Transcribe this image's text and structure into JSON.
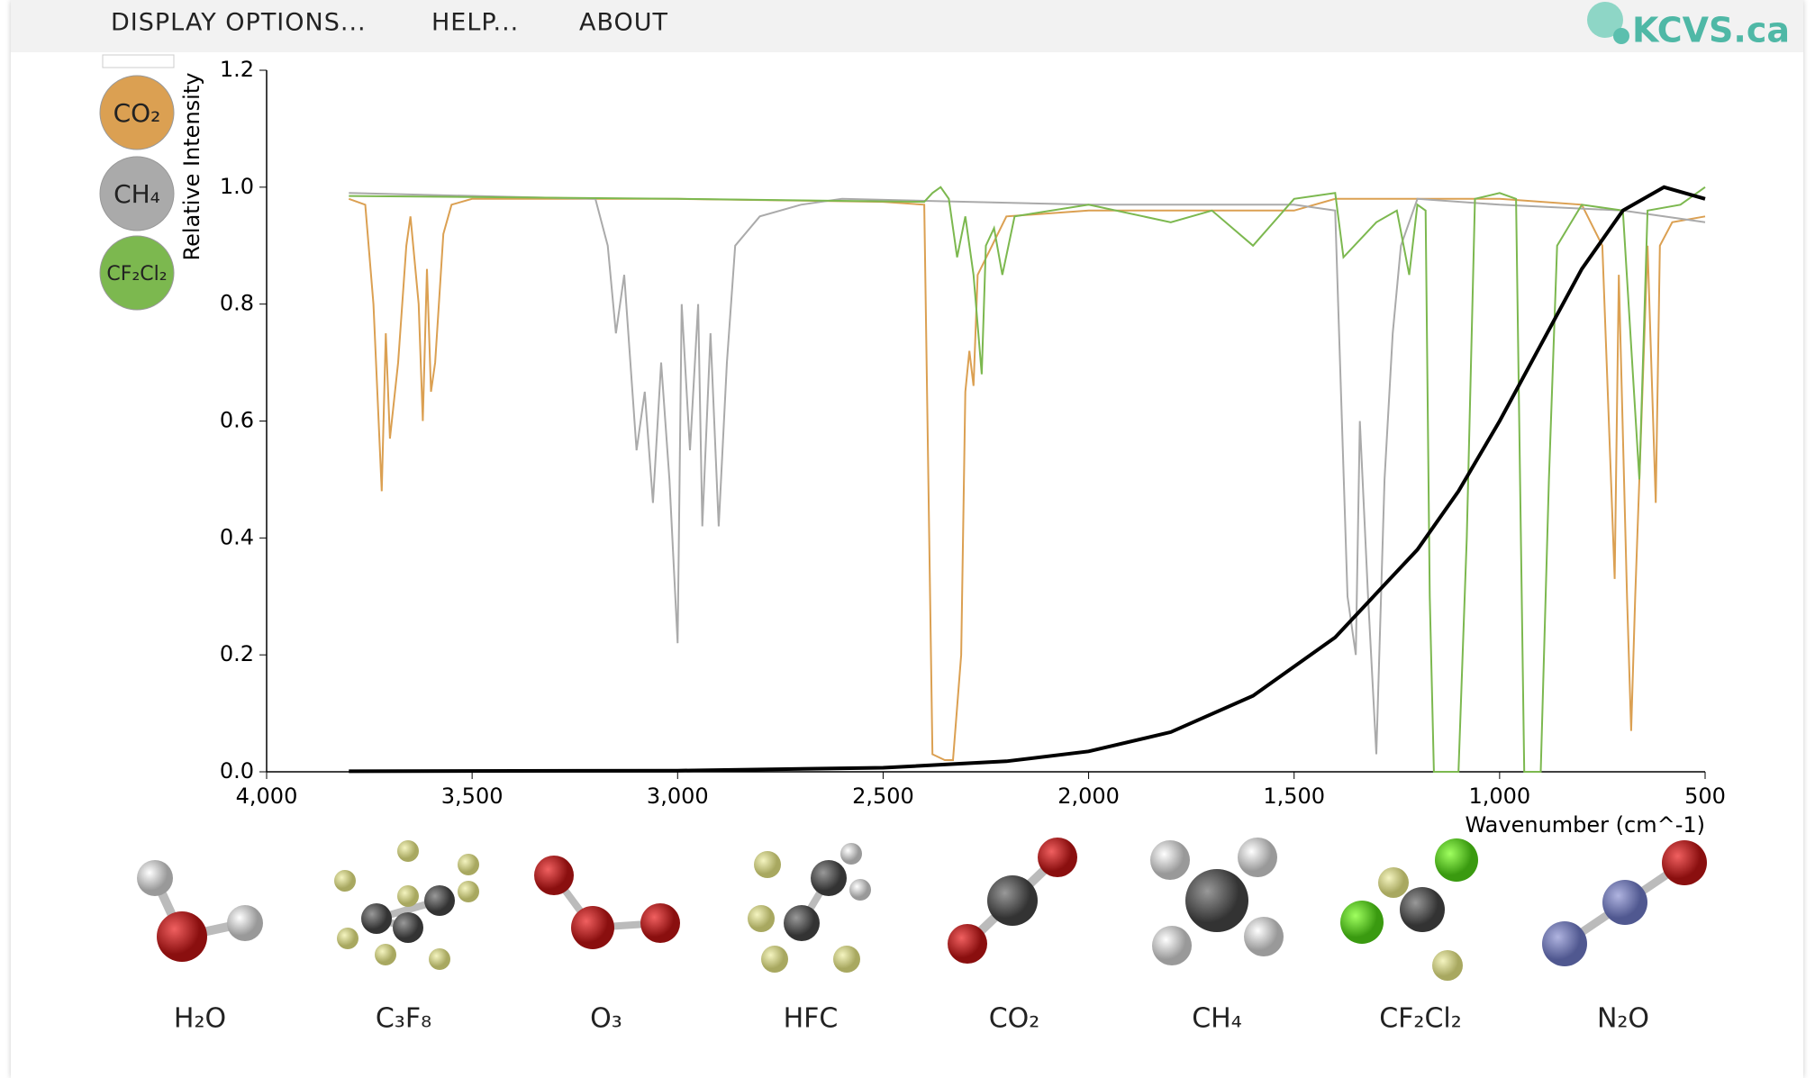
{
  "menu": [
    "DISPLAY OPTIONS...",
    "HELP...",
    "ABOUT"
  ],
  "logo": "KCVS.ca",
  "chart_data": {
    "type": "line",
    "xlabel": "Wavenumber (cm^-1)",
    "ylabel": "Relative Intensity",
    "xlim": [
      4000,
      500
    ],
    "ylim": [
      0,
      1.2
    ],
    "xticks": [
      {
        "value": 4000,
        "label": "4,000"
      },
      {
        "value": 3500,
        "label": "3,500"
      },
      {
        "value": 3000,
        "label": "3,000"
      },
      {
        "value": 2500,
        "label": "2,500"
      },
      {
        "value": 2000,
        "label": "2,000"
      },
      {
        "value": 1500,
        "label": "1,500"
      },
      {
        "value": 1000,
        "label": "1,000"
      },
      500
    ],
    "yticks": [
      {
        "value": 0,
        "label": "0.0"
      },
      0.2,
      0.4,
      0.6,
      0.8,
      {
        "value": 1,
        "label": "1.0"
      },
      1.2
    ],
    "series": [
      {
        "name": "CO₂",
        "color": "#dba052",
        "x": [
          3800,
          3760,
          3740,
          3720,
          3710,
          3700,
          3680,
          3660,
          3650,
          3630,
          3620,
          3610,
          3600,
          3590,
          3570,
          3550,
          3500,
          3000,
          2500,
          2400,
          2380,
          2350,
          2330,
          2310,
          2300,
          2290,
          2280,
          2270,
          2200,
          2000,
          1500,
          1400,
          1000,
          800,
          750,
          720,
          710,
          690,
          680,
          670,
          660,
          640,
          620,
          610,
          580,
          500
        ],
        "values": [
          0.98,
          0.97,
          0.8,
          0.48,
          0.75,
          0.57,
          0.7,
          0.9,
          0.95,
          0.8,
          0.6,
          0.86,
          0.65,
          0.7,
          0.92,
          0.97,
          0.98,
          0.98,
          0.975,
          0.97,
          0.03,
          0.02,
          0.02,
          0.2,
          0.65,
          0.72,
          0.66,
          0.85,
          0.95,
          0.96,
          0.96,
          0.98,
          0.98,
          0.97,
          0.9,
          0.33,
          0.85,
          0.3,
          0.07,
          0.3,
          0.5,
          0.9,
          0.46,
          0.9,
          0.94,
          0.95
        ]
      },
      {
        "name": "CH₄",
        "color": "#aaaaaa",
        "x": [
          3800,
          3200,
          3170,
          3150,
          3130,
          3100,
          3080,
          3060,
          3040,
          3020,
          3000,
          2990,
          2970,
          2950,
          2940,
          2920,
          2900,
          2880,
          2860,
          2800,
          2700,
          2600,
          2000,
          1500,
          1400,
          1370,
          1350,
          1340,
          1320,
          1300,
          1280,
          1260,
          1240,
          1200,
          1000,
          700,
          600,
          500
        ],
        "values": [
          0.99,
          0.98,
          0.9,
          0.75,
          0.85,
          0.55,
          0.65,
          0.46,
          0.7,
          0.5,
          0.22,
          0.8,
          0.55,
          0.8,
          0.42,
          0.75,
          0.42,
          0.7,
          0.9,
          0.95,
          0.97,
          0.98,
          0.97,
          0.97,
          0.96,
          0.3,
          0.2,
          0.6,
          0.3,
          0.03,
          0.5,
          0.75,
          0.9,
          0.98,
          0.97,
          0.96,
          0.95,
          0.94
        ]
      },
      {
        "name": "CF₂Cl₂",
        "color": "#7cb84f",
        "x": [
          3800,
          3000,
          2400,
          2380,
          2360,
          2340,
          2320,
          2300,
          2280,
          2260,
          2250,
          2230,
          2210,
          2180,
          2000,
          1800,
          1700,
          1600,
          1500,
          1400,
          1380,
          1300,
          1250,
          1220,
          1200,
          1180,
          1170,
          1160,
          1100,
          1080,
          1060,
          1000,
          960,
          940,
          900,
          880,
          860,
          800,
          700,
          660,
          640,
          560,
          500
        ],
        "values": [
          0.985,
          0.98,
          0.975,
          0.99,
          1.0,
          0.98,
          0.88,
          0.95,
          0.85,
          0.68,
          0.9,
          0.93,
          0.85,
          0.95,
          0.97,
          0.94,
          0.96,
          0.9,
          0.98,
          0.99,
          0.88,
          0.94,
          0.96,
          0.85,
          0.97,
          0.96,
          0.3,
          0.0,
          0.0,
          0.4,
          0.98,
          0.99,
          0.98,
          0.0,
          0.0,
          0.5,
          0.9,
          0.97,
          0.96,
          0.5,
          0.96,
          0.97,
          1.0
        ]
      },
      {
        "color": "#000000",
        "x": [
          3800,
          3000,
          2500,
          2200,
          2000,
          1800,
          1600,
          1400,
          1200,
          1100,
          1000,
          900,
          800,
          700,
          600,
          550,
          500
        ],
        "values": [
          0.001,
          0.002,
          0.007,
          0.018,
          0.035,
          0.068,
          0.13,
          0.23,
          0.38,
          0.48,
          0.6,
          0.73,
          0.86,
          0.96,
          1.0,
          0.99,
          0.98
        ]
      }
    ]
  },
  "molecules": [
    "H₂O",
    "C₃F₈",
    "O₃",
    "HFC",
    "CO₂",
    "CH₄",
    "CF₂Cl₂",
    "N₂O"
  ]
}
